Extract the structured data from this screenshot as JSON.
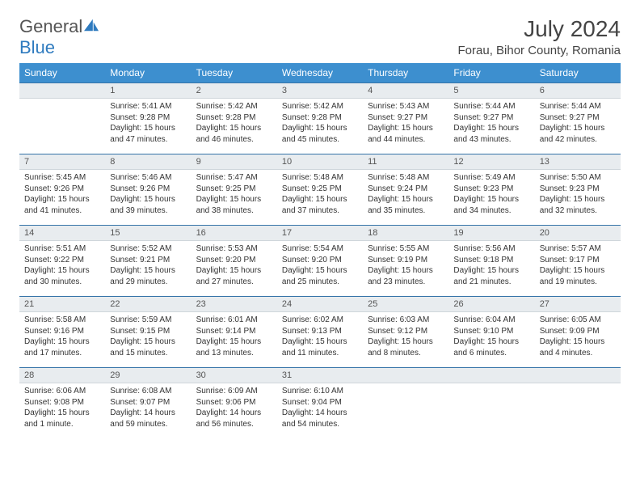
{
  "brand": {
    "part1": "General",
    "part2": "Blue"
  },
  "title": "July 2024",
  "location": "Forau, Bihor County, Romania",
  "colors": {
    "header_bg": "#3d8fcf",
    "header_text": "#ffffff",
    "daynum_bg": "#e8ecef",
    "daynum_border_top": "#3674a8",
    "text": "#333333"
  },
  "weekdays": [
    "Sunday",
    "Monday",
    "Tuesday",
    "Wednesday",
    "Thursday",
    "Friday",
    "Saturday"
  ],
  "weeks": [
    [
      {
        "day": "",
        "lines": []
      },
      {
        "day": "1",
        "lines": [
          "Sunrise: 5:41 AM",
          "Sunset: 9:28 PM",
          "Daylight: 15 hours and 47 minutes."
        ]
      },
      {
        "day": "2",
        "lines": [
          "Sunrise: 5:42 AM",
          "Sunset: 9:28 PM",
          "Daylight: 15 hours and 46 minutes."
        ]
      },
      {
        "day": "3",
        "lines": [
          "Sunrise: 5:42 AM",
          "Sunset: 9:28 PM",
          "Daylight: 15 hours and 45 minutes."
        ]
      },
      {
        "day": "4",
        "lines": [
          "Sunrise: 5:43 AM",
          "Sunset: 9:27 PM",
          "Daylight: 15 hours and 44 minutes."
        ]
      },
      {
        "day": "5",
        "lines": [
          "Sunrise: 5:44 AM",
          "Sunset: 9:27 PM",
          "Daylight: 15 hours and 43 minutes."
        ]
      },
      {
        "day": "6",
        "lines": [
          "Sunrise: 5:44 AM",
          "Sunset: 9:27 PM",
          "Daylight: 15 hours and 42 minutes."
        ]
      }
    ],
    [
      {
        "day": "7",
        "lines": [
          "Sunrise: 5:45 AM",
          "Sunset: 9:26 PM",
          "Daylight: 15 hours and 41 minutes."
        ]
      },
      {
        "day": "8",
        "lines": [
          "Sunrise: 5:46 AM",
          "Sunset: 9:26 PM",
          "Daylight: 15 hours and 39 minutes."
        ]
      },
      {
        "day": "9",
        "lines": [
          "Sunrise: 5:47 AM",
          "Sunset: 9:25 PM",
          "Daylight: 15 hours and 38 minutes."
        ]
      },
      {
        "day": "10",
        "lines": [
          "Sunrise: 5:48 AM",
          "Sunset: 9:25 PM",
          "Daylight: 15 hours and 37 minutes."
        ]
      },
      {
        "day": "11",
        "lines": [
          "Sunrise: 5:48 AM",
          "Sunset: 9:24 PM",
          "Daylight: 15 hours and 35 minutes."
        ]
      },
      {
        "day": "12",
        "lines": [
          "Sunrise: 5:49 AM",
          "Sunset: 9:23 PM",
          "Daylight: 15 hours and 34 minutes."
        ]
      },
      {
        "day": "13",
        "lines": [
          "Sunrise: 5:50 AM",
          "Sunset: 9:23 PM",
          "Daylight: 15 hours and 32 minutes."
        ]
      }
    ],
    [
      {
        "day": "14",
        "lines": [
          "Sunrise: 5:51 AM",
          "Sunset: 9:22 PM",
          "Daylight: 15 hours and 30 minutes."
        ]
      },
      {
        "day": "15",
        "lines": [
          "Sunrise: 5:52 AM",
          "Sunset: 9:21 PM",
          "Daylight: 15 hours and 29 minutes."
        ]
      },
      {
        "day": "16",
        "lines": [
          "Sunrise: 5:53 AM",
          "Sunset: 9:20 PM",
          "Daylight: 15 hours and 27 minutes."
        ]
      },
      {
        "day": "17",
        "lines": [
          "Sunrise: 5:54 AM",
          "Sunset: 9:20 PM",
          "Daylight: 15 hours and 25 minutes."
        ]
      },
      {
        "day": "18",
        "lines": [
          "Sunrise: 5:55 AM",
          "Sunset: 9:19 PM",
          "Daylight: 15 hours and 23 minutes."
        ]
      },
      {
        "day": "19",
        "lines": [
          "Sunrise: 5:56 AM",
          "Sunset: 9:18 PM",
          "Daylight: 15 hours and 21 minutes."
        ]
      },
      {
        "day": "20",
        "lines": [
          "Sunrise: 5:57 AM",
          "Sunset: 9:17 PM",
          "Daylight: 15 hours and 19 minutes."
        ]
      }
    ],
    [
      {
        "day": "21",
        "lines": [
          "Sunrise: 5:58 AM",
          "Sunset: 9:16 PM",
          "Daylight: 15 hours and 17 minutes."
        ]
      },
      {
        "day": "22",
        "lines": [
          "Sunrise: 5:59 AM",
          "Sunset: 9:15 PM",
          "Daylight: 15 hours and 15 minutes."
        ]
      },
      {
        "day": "23",
        "lines": [
          "Sunrise: 6:01 AM",
          "Sunset: 9:14 PM",
          "Daylight: 15 hours and 13 minutes."
        ]
      },
      {
        "day": "24",
        "lines": [
          "Sunrise: 6:02 AM",
          "Sunset: 9:13 PM",
          "Daylight: 15 hours and 11 minutes."
        ]
      },
      {
        "day": "25",
        "lines": [
          "Sunrise: 6:03 AM",
          "Sunset: 9:12 PM",
          "Daylight: 15 hours and 8 minutes."
        ]
      },
      {
        "day": "26",
        "lines": [
          "Sunrise: 6:04 AM",
          "Sunset: 9:10 PM",
          "Daylight: 15 hours and 6 minutes."
        ]
      },
      {
        "day": "27",
        "lines": [
          "Sunrise: 6:05 AM",
          "Sunset: 9:09 PM",
          "Daylight: 15 hours and 4 minutes."
        ]
      }
    ],
    [
      {
        "day": "28",
        "lines": [
          "Sunrise: 6:06 AM",
          "Sunset: 9:08 PM",
          "Daylight: 15 hours and 1 minute."
        ]
      },
      {
        "day": "29",
        "lines": [
          "Sunrise: 6:08 AM",
          "Sunset: 9:07 PM",
          "Daylight: 14 hours and 59 minutes."
        ]
      },
      {
        "day": "30",
        "lines": [
          "Sunrise: 6:09 AM",
          "Sunset: 9:06 PM",
          "Daylight: 14 hours and 56 minutes."
        ]
      },
      {
        "day": "31",
        "lines": [
          "Sunrise: 6:10 AM",
          "Sunset: 9:04 PM",
          "Daylight: 14 hours and 54 minutes."
        ]
      },
      {
        "day": "",
        "lines": []
      },
      {
        "day": "",
        "lines": []
      },
      {
        "day": "",
        "lines": []
      }
    ]
  ]
}
